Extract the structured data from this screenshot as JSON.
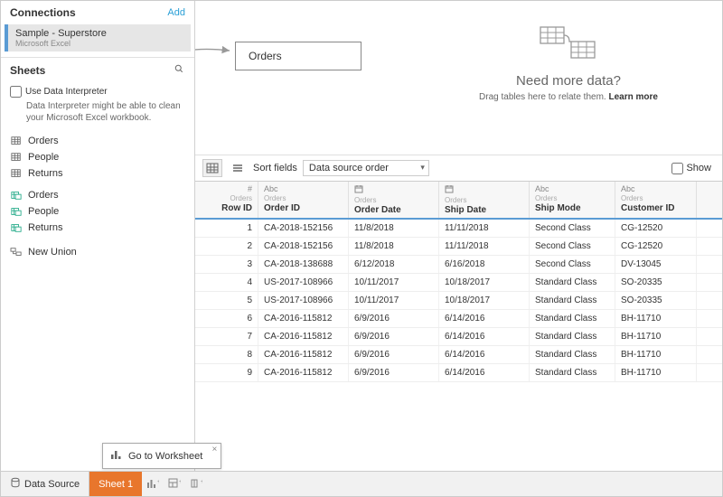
{
  "sidebar": {
    "connections_label": "Connections",
    "add_label": "Add",
    "connection": {
      "name": "Sample - Superstore",
      "type": "Microsoft Excel"
    },
    "sheets_label": "Sheets",
    "interpreter_checkbox": "Use Data Interpreter",
    "interpreter_help": "Data Interpreter might be able to clean your Microsoft Excel workbook.",
    "sheets": [
      {
        "icon": "grid",
        "label": "Orders"
      },
      {
        "icon": "grid",
        "label": "People"
      },
      {
        "icon": "grid",
        "label": "Returns"
      },
      {
        "icon": "linked",
        "label": "Orders"
      },
      {
        "icon": "linked",
        "label": "People"
      },
      {
        "icon": "linked",
        "label": "Returns"
      }
    ],
    "new_union_label": "New Union"
  },
  "canvas": {
    "table_pill": "Orders",
    "placeholder_title": "Need more data?",
    "placeholder_sub_a": "Drag tables here to relate them. ",
    "placeholder_sub_b": "Learn more"
  },
  "toolbar": {
    "sort_label": "Sort fields",
    "sort_value": "Data source order",
    "show_label": "Show"
  },
  "grid": {
    "source_table": "Orders",
    "columns": [
      {
        "type": "#",
        "name": "Row ID"
      },
      {
        "type": "Abc",
        "name": "Order ID"
      },
      {
        "type": "date",
        "name": "Order Date"
      },
      {
        "type": "date",
        "name": "Ship Date"
      },
      {
        "type": "Abc",
        "name": "Ship Mode"
      },
      {
        "type": "Abc",
        "name": "Customer ID"
      }
    ],
    "rows": [
      [
        "1",
        "CA-2018-152156",
        "11/8/2018",
        "11/11/2018",
        "Second Class",
        "CG-12520"
      ],
      [
        "2",
        "CA-2018-152156",
        "11/8/2018",
        "11/11/2018",
        "Second Class",
        "CG-12520"
      ],
      [
        "3",
        "CA-2018-138688",
        "6/12/2018",
        "6/16/2018",
        "Second Class",
        "DV-13045"
      ],
      [
        "4",
        "US-2017-108966",
        "10/11/2017",
        "10/18/2017",
        "Standard Class",
        "SO-20335"
      ],
      [
        "5",
        "US-2017-108966",
        "10/11/2017",
        "10/18/2017",
        "Standard Class",
        "SO-20335"
      ],
      [
        "6",
        "CA-2016-115812",
        "6/9/2016",
        "6/14/2016",
        "Standard Class",
        "BH-11710"
      ],
      [
        "7",
        "CA-2016-115812",
        "6/9/2016",
        "6/14/2016",
        "Standard Class",
        "BH-11710"
      ],
      [
        "8",
        "CA-2016-115812",
        "6/9/2016",
        "6/14/2016",
        "Standard Class",
        "BH-11710"
      ],
      [
        "9",
        "CA-2016-115812",
        "6/9/2016",
        "6/14/2016",
        "Standard Class",
        "BH-11710"
      ]
    ]
  },
  "tooltip": {
    "text": "Go to Worksheet"
  },
  "bottom": {
    "data_source_label": "Data Source",
    "sheet_tab_label": "Sheet 1"
  },
  "colors": {
    "accent_blue": "#5a9bd4",
    "orange": "#e8762c",
    "border": "#cccccc"
  }
}
